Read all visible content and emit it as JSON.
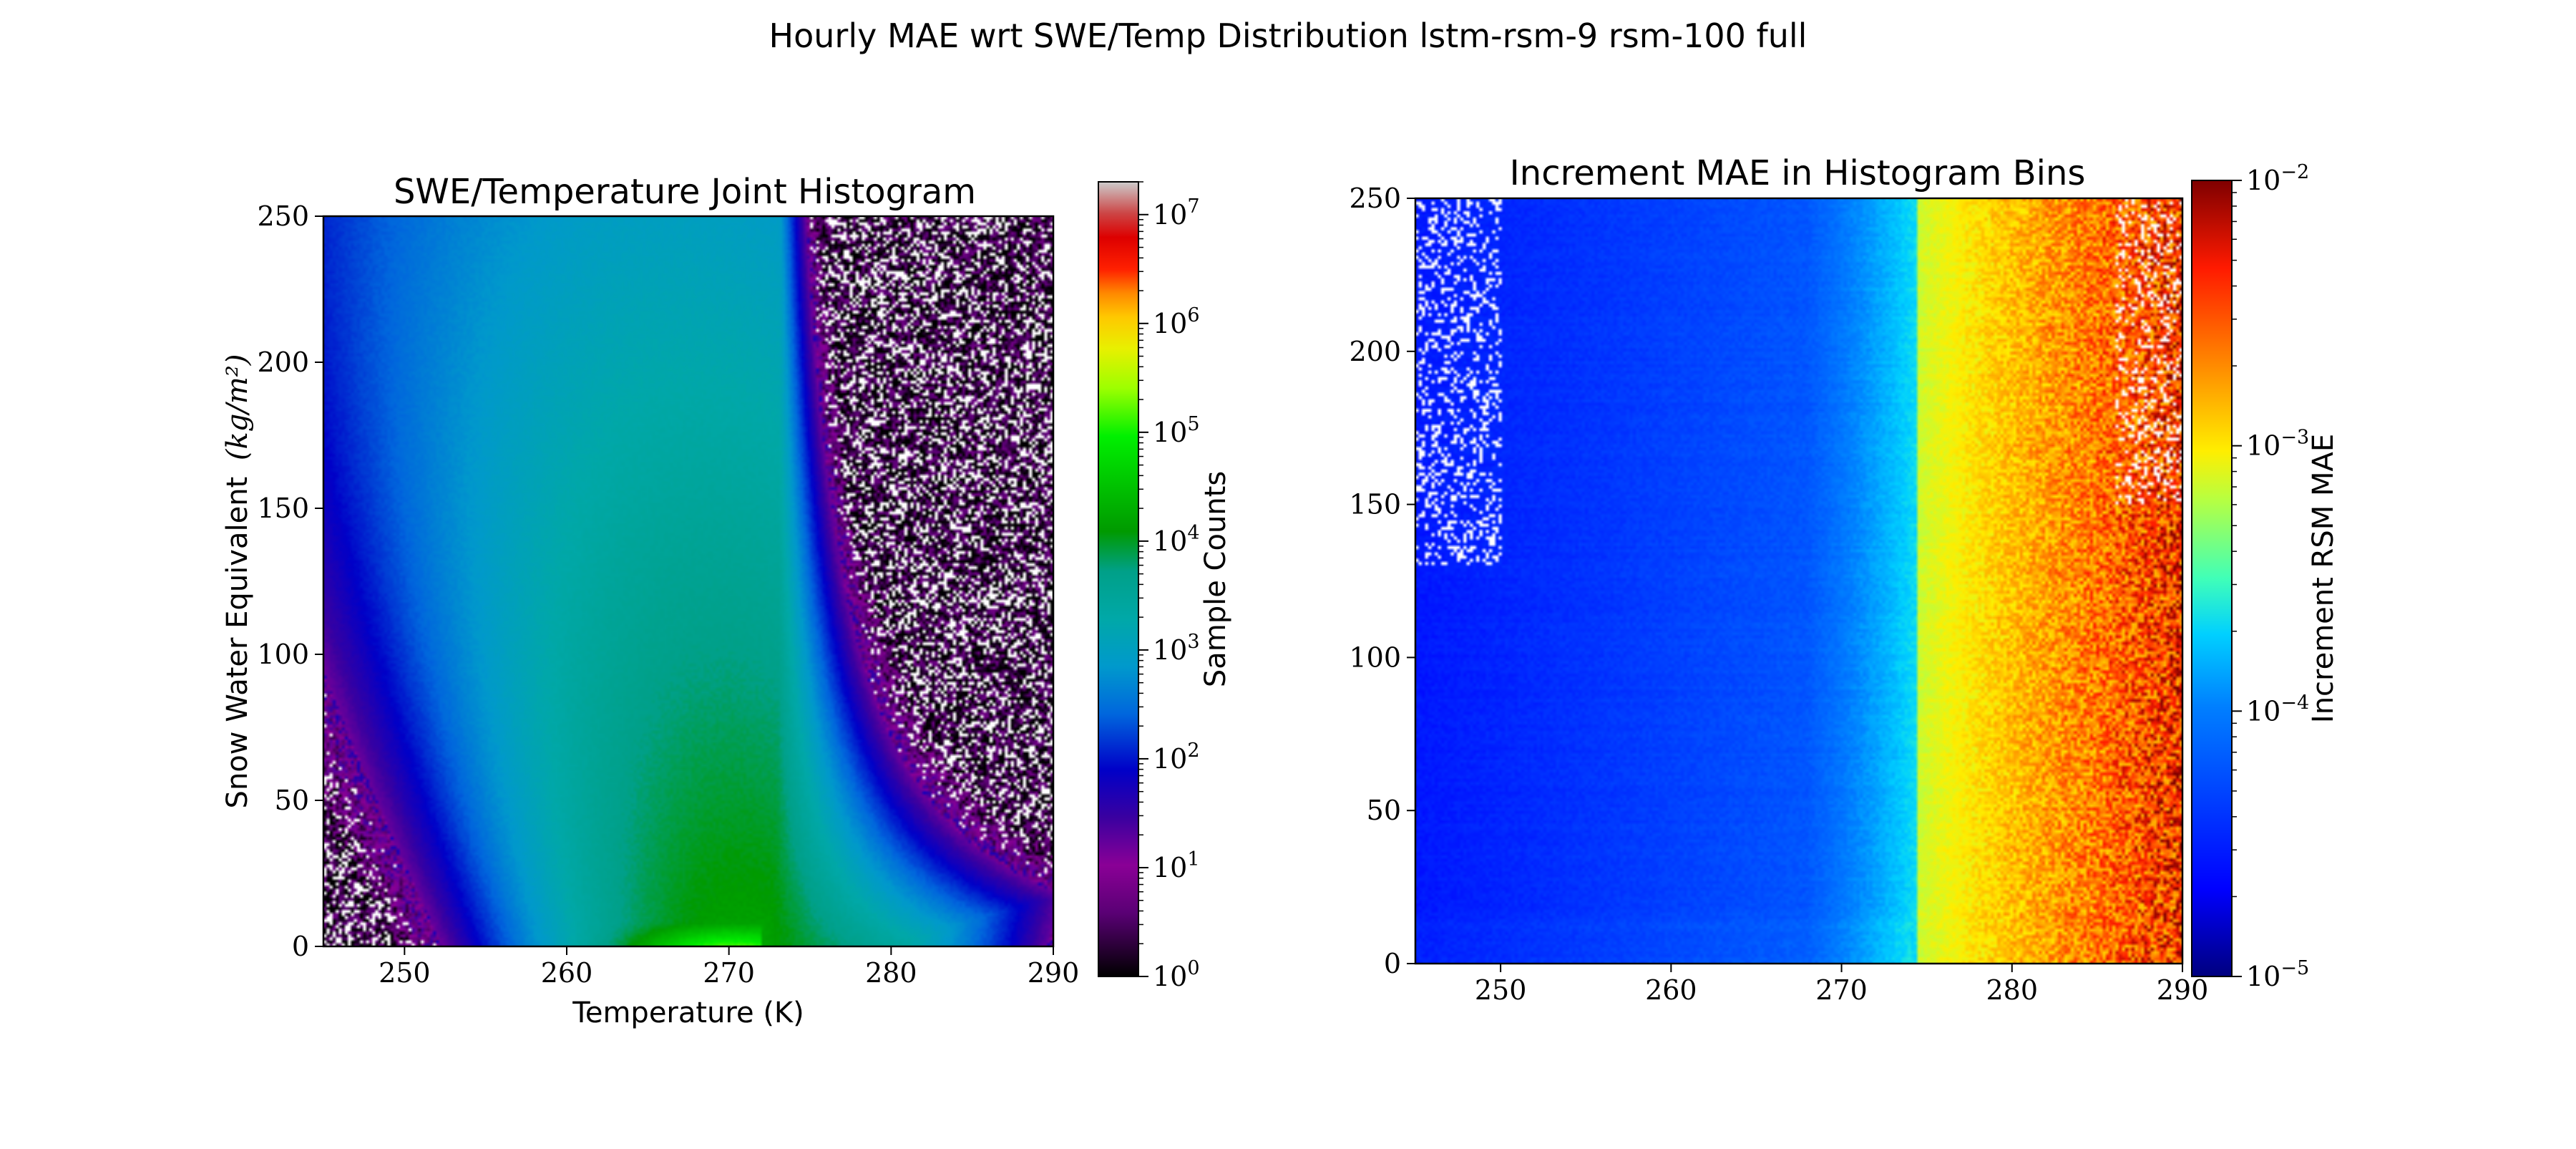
{
  "figure": {
    "suptitle": "Hourly MAE wrt SWE/Temp Distribution lstm-rsm-9 rsm-100 full"
  },
  "colors": {
    "background": "#ffffff",
    "axis": "#000000"
  },
  "chart_data": [
    {
      "type": "heatmap",
      "title": "SWE/Temperature Joint Histogram",
      "xlabel": "Temperature (K)",
      "ylabel": "Snow Water Equivalent",
      "ylabel_units": "(kg/m²)",
      "xlim": [
        245,
        290
      ],
      "ylim": [
        0,
        250
      ],
      "xticks": [
        250,
        260,
        270,
        280,
        290
      ],
      "yticks": [
        0,
        50,
        100,
        150,
        200,
        250
      ],
      "colorbar": {
        "label": "Sample Counts",
        "scale": "log",
        "colormap": "nipy_spectral",
        "range": [
          1,
          20000000
        ],
        "tick_values": [
          1,
          10,
          100,
          1000,
          10000,
          100000,
          1000000,
          10000000
        ],
        "tick_labels": [
          {
            "base": "10",
            "exp": "0"
          },
          {
            "base": "10",
            "exp": "1"
          },
          {
            "base": "10",
            "exp": "2"
          },
          {
            "base": "10",
            "exp": "3"
          },
          {
            "base": "10",
            "exp": "4"
          },
          {
            "base": "10",
            "exp": "5"
          },
          {
            "base": "10",
            "exp": "6"
          },
          {
            "base": "10",
            "exp": "7"
          }
        ]
      },
      "pattern": {
        "peak": {
          "temperature_K": 270,
          "swe": 0,
          "count": 100000
        },
        "description_points": [
          {
            "temperature_K": 247,
            "swe": 230,
            "count": 3
          },
          {
            "temperature_K": 255,
            "swe": 200,
            "count": 60
          },
          {
            "temperature_K": 268,
            "swe": 150,
            "count": 500
          },
          {
            "temperature_K": 268,
            "swe": 50,
            "count": 2000
          },
          {
            "temperature_K": 270,
            "swe": 5,
            "count": 100000
          },
          {
            "temperature_K": 280,
            "swe": 150,
            "count": 30
          },
          {
            "temperature_K": 287,
            "swe": 200,
            "count": 3
          }
        ]
      }
    },
    {
      "type": "heatmap",
      "title": "Increment MAE in Histogram Bins",
      "xlabel": "",
      "ylabel": "",
      "xlim": [
        245,
        290
      ],
      "ylim": [
        0,
        250
      ],
      "xticks": [
        250,
        260,
        270,
        280,
        290
      ],
      "yticks": [
        0,
        50,
        100,
        150,
        200,
        250
      ],
      "colorbar": {
        "label": "Increment RSM MAE",
        "scale": "log",
        "colormap": "jet",
        "range": [
          1e-05,
          0.01
        ],
        "tick_values": [
          1e-05,
          0.0001,
          0.001,
          0.01
        ],
        "tick_labels": [
          {
            "base": "10",
            "exp": "−5"
          },
          {
            "base": "10",
            "exp": "−4"
          },
          {
            "base": "10",
            "exp": "−3"
          },
          {
            "base": "10",
            "exp": "−2"
          }
        ]
      },
      "pattern": {
        "description_points": [
          {
            "temperature_K": 255,
            "swe": 100,
            "mae": 3e-05
          },
          {
            "temperature_K": 270,
            "swe": 100,
            "mae": 0.0001
          },
          {
            "temperature_K": 275,
            "swe": 100,
            "mae": 0.0008
          },
          {
            "temperature_K": 285,
            "swe": 100,
            "mae": 0.0015
          },
          {
            "temperature_K": 290,
            "swe": 0,
            "mae": 0.003
          }
        ]
      }
    }
  ]
}
